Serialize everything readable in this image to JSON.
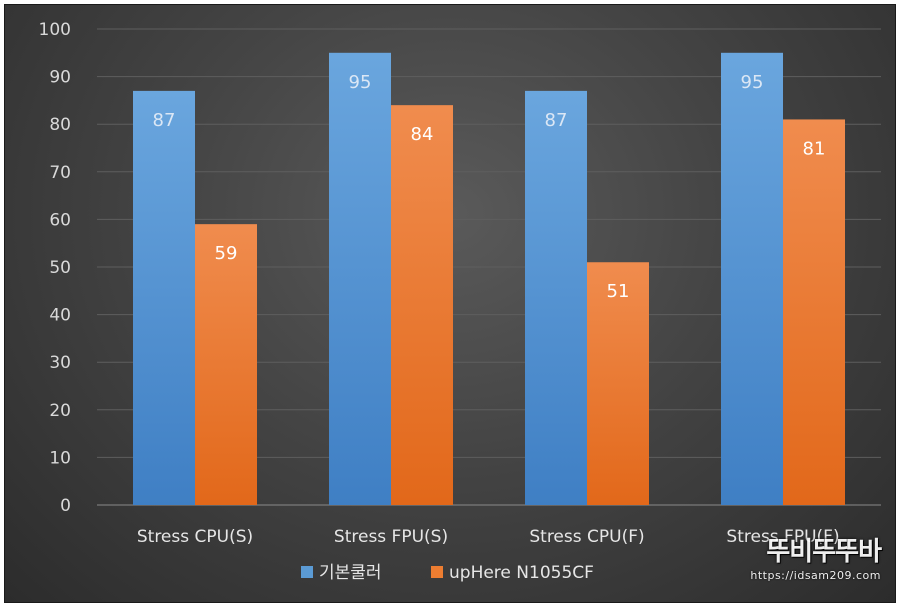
{
  "chart_data": {
    "type": "bar",
    "categories": [
      "Stress CPU(S)",
      "Stress FPU(S)",
      "Stress CPU(F)",
      "Stress FPU(F)"
    ],
    "series": [
      {
        "name": "기본쿨러",
        "values": [
          87,
          95,
          87,
          95
        ],
        "color": "#5b9bd5"
      },
      {
        "name": "upHere N1055CF",
        "values": [
          59,
          84,
          51,
          81
        ],
        "color": "#ed7d31"
      }
    ],
    "ylim": [
      0,
      100
    ],
    "yticks": [
      0,
      10,
      20,
      30,
      40,
      50,
      60,
      70,
      80,
      90,
      100
    ],
    "grid": true,
    "legend_position": "bottom-center",
    "data_label_colors": [
      "#dbe7f5",
      "#ffffff"
    ]
  },
  "watermark": {
    "logo_text": "뚜비뚜뚜바",
    "url_text": "https://idsam209.com"
  }
}
